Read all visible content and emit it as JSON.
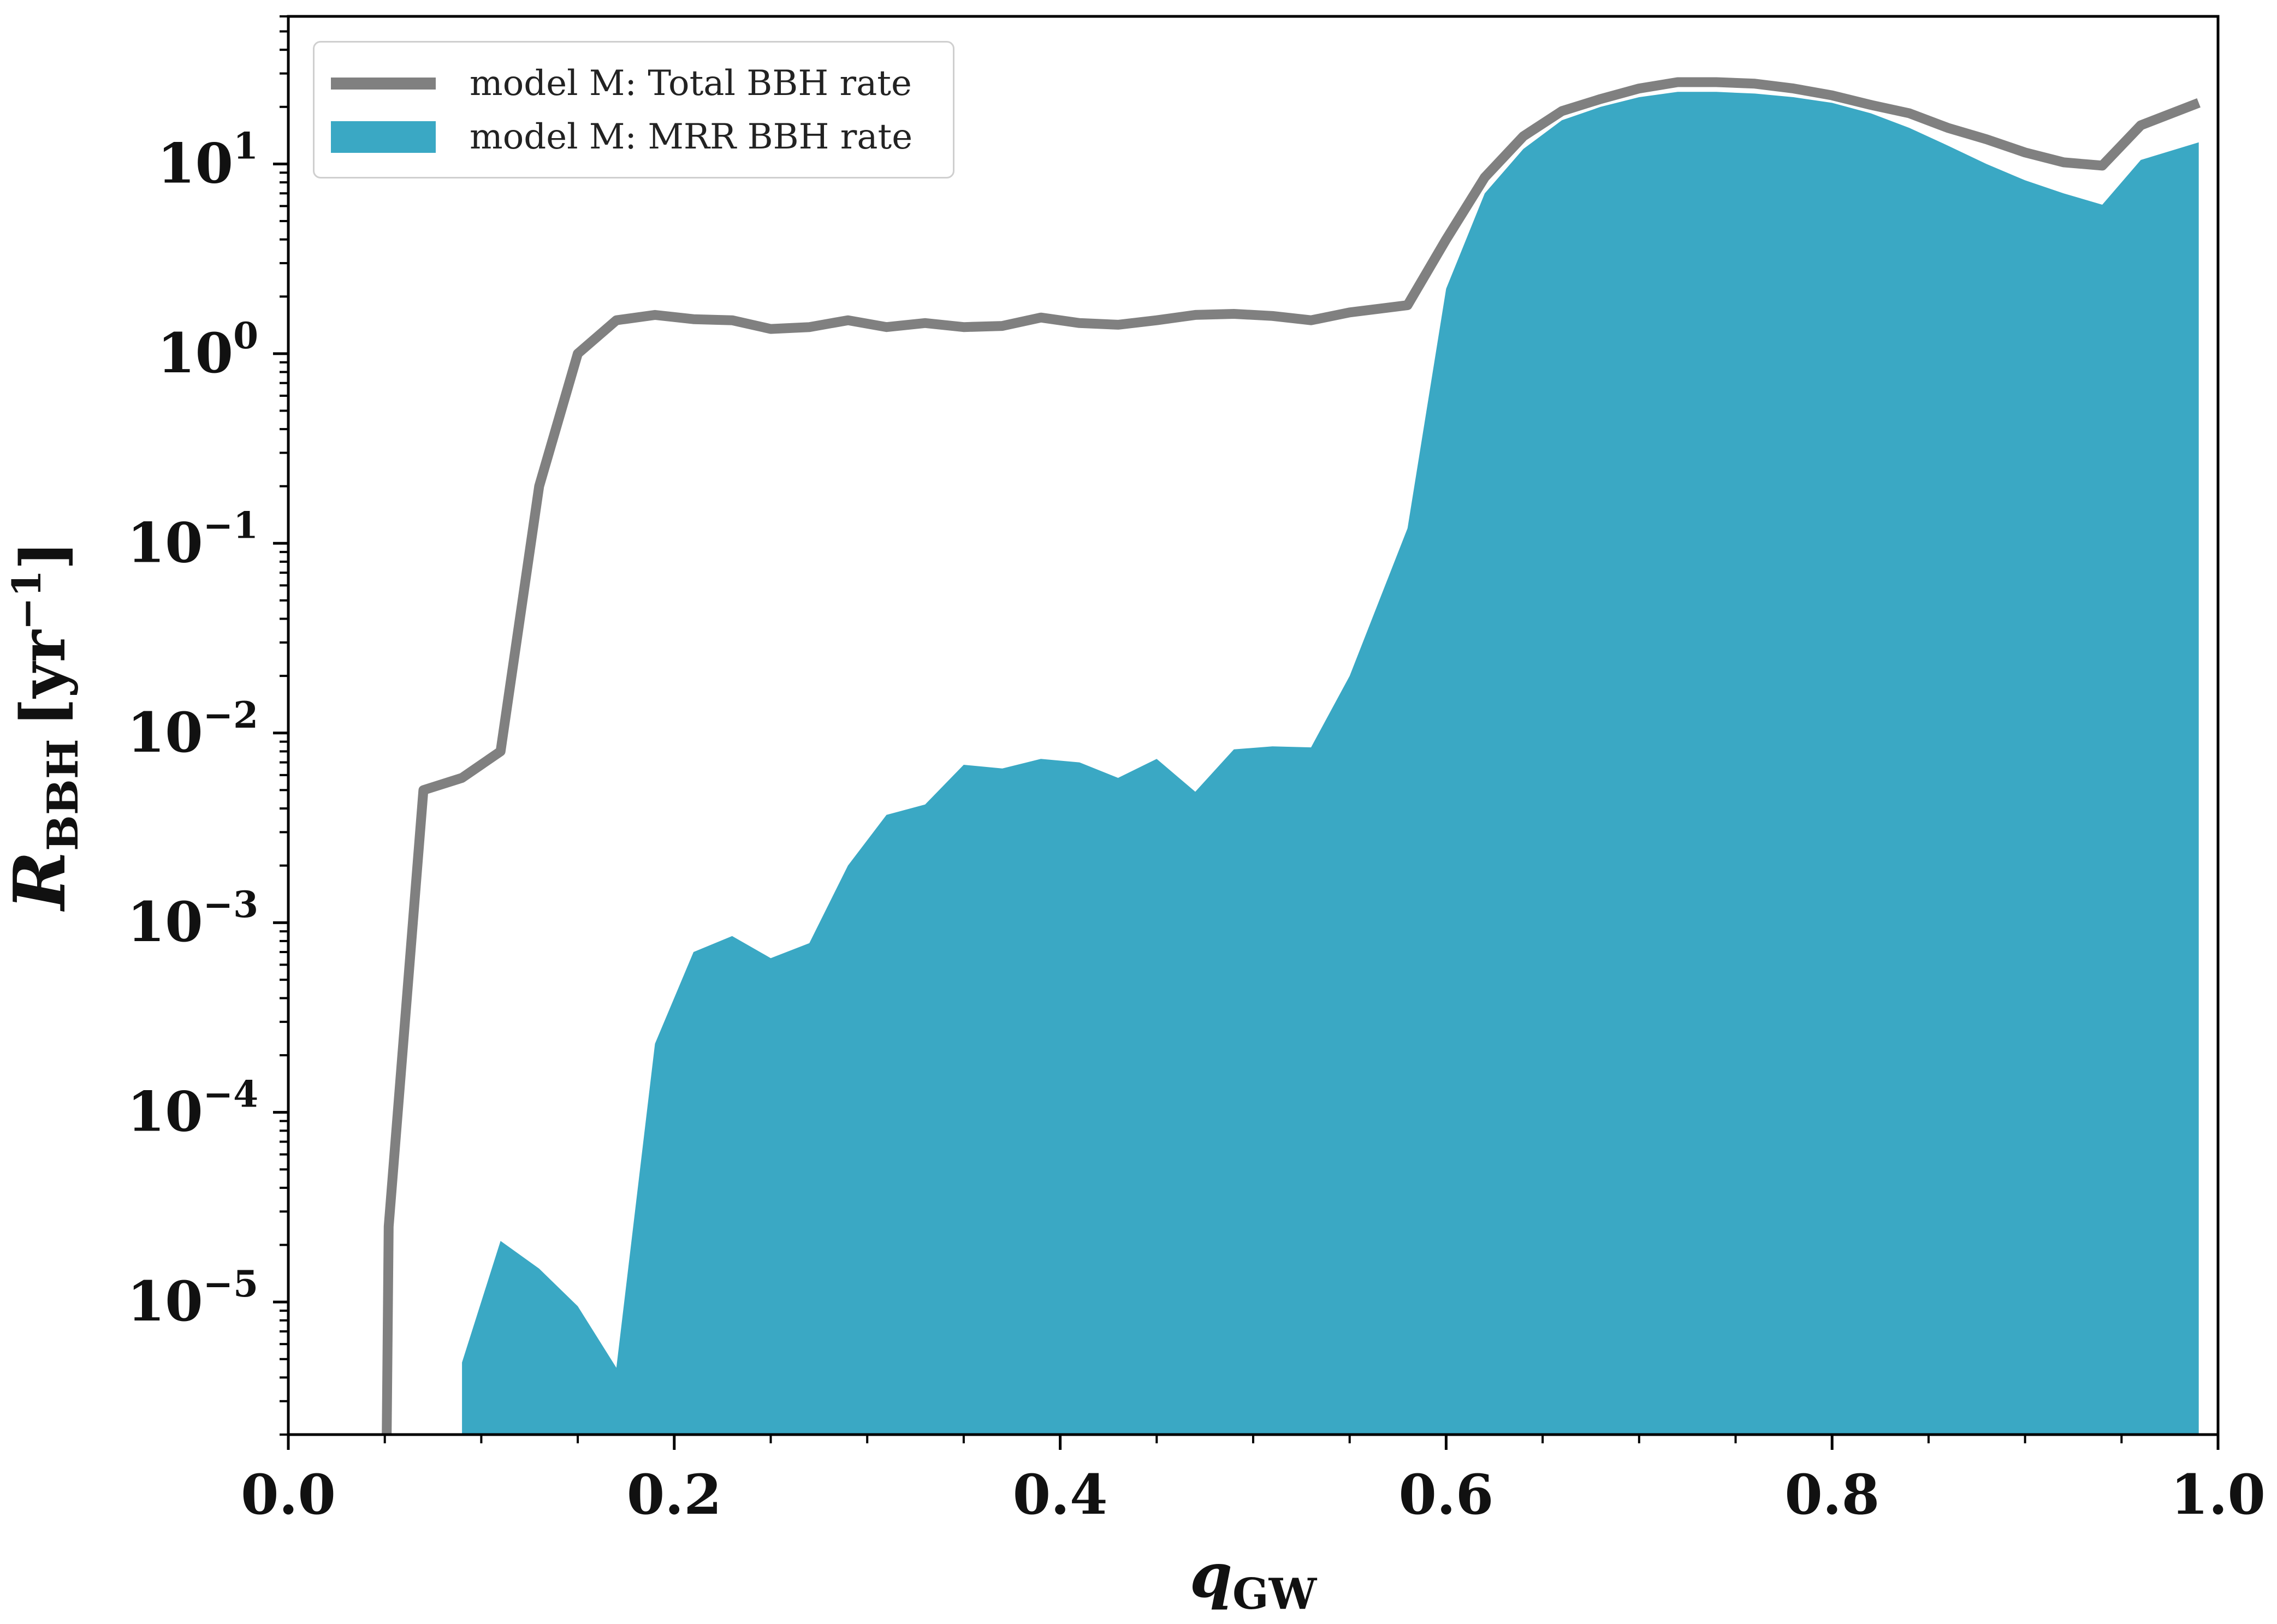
{
  "chart_data": {
    "type": "area",
    "title": "",
    "xlabel": "q_GW",
    "xlabel_main": "q",
    "xlabel_sub": "GW",
    "ylabel": "R_BBH [yr^-1]",
    "ylabel_symbol": "R",
    "ylabel_sub": "BBH",
    "ylabel_unit": "[yr",
    "ylabel_unit_exp": "−1",
    "ylabel_unit_close": "]",
    "xlim": [
      0.0,
      1.0
    ],
    "ylim": [
      2e-06,
      60
    ],
    "yscale": "log",
    "grid": false,
    "legend_position": "top-left",
    "xticks": [
      {
        "value": 0.0,
        "label": "0.0"
      },
      {
        "value": 0.2,
        "label": "0.2"
      },
      {
        "value": 0.4,
        "label": "0.4"
      },
      {
        "value": 0.6,
        "label": "0.6"
      },
      {
        "value": 0.8,
        "label": "0.8"
      },
      {
        "value": 1.0,
        "label": "1.0"
      }
    ],
    "yticks": [
      {
        "value": 1e-05,
        "base": "10",
        "exp": "−5"
      },
      {
        "value": 0.0001,
        "base": "10",
        "exp": "−4"
      },
      {
        "value": 0.001,
        "base": "10",
        "exp": "−3"
      },
      {
        "value": 0.01,
        "base": "10",
        "exp": "−2"
      },
      {
        "value": 0.1,
        "base": "10",
        "exp": "−1"
      },
      {
        "value": 1,
        "base": "10",
        "exp": "0"
      },
      {
        "value": 10,
        "base": "10",
        "exp": "1"
      }
    ],
    "series": [
      {
        "name": "model M: Total BBH rate",
        "kind": "line",
        "color": "#808080",
        "x": [
          0.05,
          0.051,
          0.052,
          0.07,
          0.09,
          0.11,
          0.13,
          0.15,
          0.17,
          0.19,
          0.21,
          0.23,
          0.25,
          0.27,
          0.29,
          0.31,
          0.33,
          0.35,
          0.37,
          0.39,
          0.41,
          0.43,
          0.45,
          0.47,
          0.49,
          0.51,
          0.53,
          0.55,
          0.58,
          0.6,
          0.62,
          0.64,
          0.66,
          0.68,
          0.7,
          0.72,
          0.74,
          0.76,
          0.78,
          0.8,
          0.82,
          0.84,
          0.86,
          0.88,
          0.9,
          0.92,
          0.94,
          0.96,
          0.99
        ],
        "values": [
          1e-06,
          2e-06,
          2.5e-05,
          0.005,
          0.0058,
          0.008,
          0.2,
          1.0,
          1.5,
          1.6,
          1.52,
          1.5,
          1.35,
          1.38,
          1.5,
          1.38,
          1.45,
          1.38,
          1.4,
          1.55,
          1.45,
          1.42,
          1.5,
          1.6,
          1.62,
          1.58,
          1.5,
          1.65,
          1.8,
          4.0,
          8.5,
          14,
          19,
          22,
          25,
          27,
          27,
          26.5,
          25,
          23,
          20.5,
          18.5,
          15.5,
          13.5,
          11.5,
          10.2,
          9.8,
          16,
          21
        ]
      },
      {
        "name": "model M: MRR BBH rate",
        "kind": "fill",
        "color": "#3aa8c4",
        "x": [
          0.09,
          0.11,
          0.13,
          0.15,
          0.17,
          0.19,
          0.21,
          0.23,
          0.25,
          0.27,
          0.29,
          0.31,
          0.33,
          0.35,
          0.37,
          0.39,
          0.41,
          0.43,
          0.45,
          0.47,
          0.49,
          0.51,
          0.53,
          0.55,
          0.58,
          0.6,
          0.62,
          0.64,
          0.66,
          0.68,
          0.7,
          0.72,
          0.74,
          0.76,
          0.78,
          0.8,
          0.82,
          0.84,
          0.86,
          0.88,
          0.9,
          0.92,
          0.94,
          0.96,
          0.99
        ],
        "values": [
          4.8e-06,
          2.1e-05,
          1.5e-05,
          9.5e-06,
          4.5e-06,
          0.00023,
          0.0007,
          0.00085,
          0.00065,
          0.00078,
          0.002,
          0.0037,
          0.0042,
          0.0068,
          0.0065,
          0.0073,
          0.007,
          0.0058,
          0.0073,
          0.0049,
          0.0082,
          0.0085,
          0.0084,
          0.02,
          0.12,
          2.2,
          7.0,
          12,
          17,
          20,
          22.5,
          24,
          24,
          23.5,
          22.5,
          21,
          18.5,
          15.5,
          12.5,
          10,
          8.2,
          7.0,
          6.1,
          10.5,
          13
        ]
      }
    ]
  }
}
